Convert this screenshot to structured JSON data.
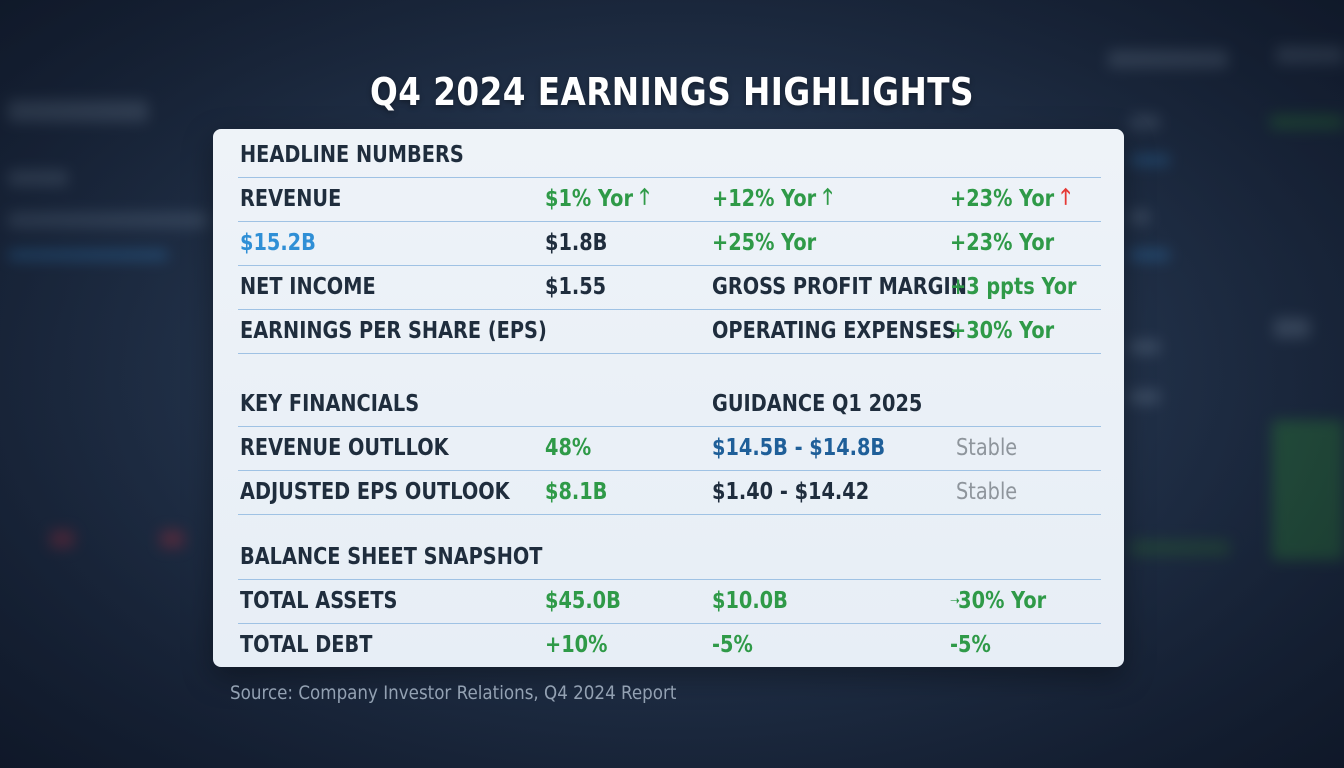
{
  "title": "Q4 2024 EARNINGS HIGHLIGHTS",
  "headline_section": {
    "header": "HEADLINE NUMBERS",
    "rows": [
      [
        "REVENUE",
        "$1% Yor",
        "+12% Yor",
        "+23% Yor"
      ],
      [
        "$15.2B",
        "$1.8B",
        "+25% Yor",
        "+23% Yor"
      ],
      [
        "NET INCOME",
        "$1.55",
        "GROSS PROFIT MARGIN",
        "+3 ppts Yor"
      ],
      [
        "EARNINGS PER SHARE (EPS)",
        "",
        "OPERATING EXPENSES",
        "+30% Yor"
      ]
    ]
  },
  "key_financials": {
    "header_left": "KEY FINANCIALS",
    "header_right": "GUIDANCE Q1 2025",
    "rows": [
      [
        "REVENUE OUTLLOK",
        "48%",
        "$14.5B - $14.8B",
        "Stable"
      ],
      [
        "ADJUSTED EPS OUTLOOK",
        "$8.1B",
        "$1.40 - $14.42",
        "Stable"
      ]
    ]
  },
  "balance_sheet": {
    "header": "BALANCE SHEET SNAPSHOT",
    "rows": [
      [
        "TOTAL ASSETS",
        "$45.0B",
        "$10.0B",
        "30% Yor"
      ],
      [
        "TOTAL DEBT",
        "+10%",
        "-5%",
        "-5%"
      ]
    ]
  },
  "icons": {
    "up_arrow_green": "up-arrow-icon",
    "up_arrow_red": "up-arrow-icon",
    "small_arrow": "right-arrow-icon"
  },
  "colors": {
    "positive": "#2f9a48",
    "highlight_blue": "#2f8fd6",
    "guidance_blue": "#1f5f99",
    "neutral_gray": "#8e959c",
    "negative_arrow": "#e53935"
  },
  "source": "Source: Company Investor Relations, Q4 2024 Report"
}
